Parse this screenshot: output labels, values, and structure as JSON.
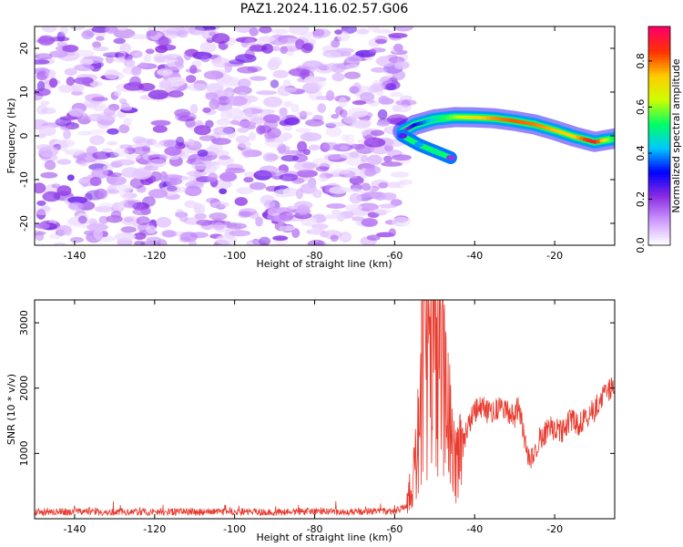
{
  "figure_title": "PAZ1.2024.116.02.57.G06",
  "chart_data": [
    {
      "type": "heatmap",
      "xlabel": "Height of straight line (km)",
      "ylabel": "Frequency (Hz)",
      "xlim": [
        -150,
        -5
      ],
      "ylim": [
        -25,
        25
      ],
      "xticks": [
        -140,
        -120,
        -100,
        -80,
        -60,
        -40,
        -20
      ],
      "yticks": [
        -20,
        -10,
        0,
        10,
        20
      ],
      "colorbar": {
        "label": "Normalized spectral amplitude",
        "range": [
          0,
          0.95
        ],
        "ticks": [
          "0.0",
          "0.2",
          "0.4",
          "0.6",
          "0.8"
        ],
        "colors": [
          "#ffffff",
          "#cc99ff",
          "#8a2be2",
          "#0000ff",
          "#00c8ff",
          "#00ff66",
          "#ccff00",
          "#ffcc00",
          "#ff3300",
          "#ff0066"
        ]
      },
      "noise_region": {
        "x_range": [
          -150,
          -57
        ],
        "y_range": [
          -25,
          25
        ],
        "typical_amplitude": [
          0.02,
          0.12
        ]
      },
      "signal_ridge": {
        "x": [
          -58,
          -55,
          -50,
          -45,
          -40,
          -35,
          -30,
          -25,
          -20,
          -15,
          -10,
          -5
        ],
        "frequency": [
          1.0,
          2.5,
          3.8,
          4.3,
          4.2,
          4.0,
          3.4,
          2.6,
          1.3,
          -0.2,
          -1.4,
          -0.6
        ],
        "amplitude": [
          0.15,
          0.3,
          0.45,
          0.6,
          0.7,
          0.78,
          0.82,
          0.8,
          0.75,
          0.72,
          0.92,
          0.5
        ]
      },
      "secondary_feature": {
        "x": [
          -58,
          -54,
          -50,
          -46
        ],
        "frequency": [
          0,
          -2,
          -3.5,
          -5
        ],
        "amplitude": [
          0.25,
          0.4,
          0.5,
          0.2
        ]
      }
    },
    {
      "type": "line",
      "xlabel": "Height of straight line (km)",
      "ylabel": "SNR (10 * v/v)",
      "xlim": [
        -150,
        -5
      ],
      "ylim": [
        0,
        3350
      ],
      "xticks": [
        -140,
        -120,
        -100,
        -80,
        -60,
        -40,
        -20
      ],
      "yticks": [
        1000,
        2000,
        3000
      ],
      "series_color": "#e83a2e",
      "series": [
        {
          "x": [
            -150,
            -140,
            -130,
            -120,
            -110,
            -100,
            -90,
            -80,
            -70,
            -60,
            -57,
            -55,
            -54,
            -53,
            -52,
            -51,
            -50,
            -49,
            -48,
            -47,
            -46,
            -45,
            -44,
            -43,
            -42,
            -40,
            -38,
            -36,
            -34,
            -32,
            -30,
            -29,
            -28,
            -27,
            -26,
            -25,
            -24,
            -22,
            -20,
            -18,
            -16,
            -14,
            -12,
            -10,
            -8,
            -6,
            -5
          ],
          "y": [
            100,
            110,
            100,
            105,
            100,
            110,
            100,
            115,
            105,
            110,
            200,
            700,
            1500,
            2200,
            2900,
            3200,
            2500,
            2700,
            2300,
            1800,
            1200,
            900,
            800,
            1100,
            1350,
            1650,
            1700,
            1600,
            1700,
            1650,
            1550,
            1750,
            1400,
            1050,
            950,
            1050,
            1200,
            1350,
            1400,
            1350,
            1500,
            1450,
            1600,
            1650,
            1900,
            2000,
            1980
          ]
        }
      ]
    }
  ]
}
